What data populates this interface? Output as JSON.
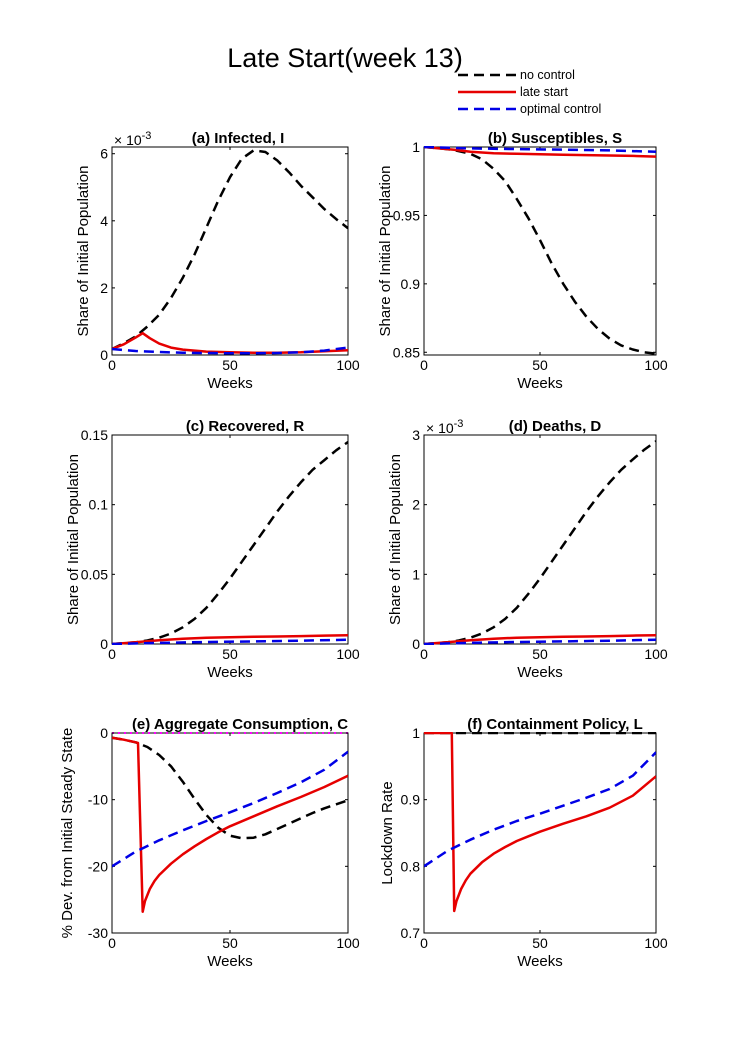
{
  "figure": {
    "title": "Late Start(week 13)",
    "legend": {
      "position": "top-right",
      "entries": [
        {
          "label": "no control",
          "color": "#000000",
          "style": "dashed"
        },
        {
          "label": "late start",
          "color": "#e60000",
          "style": "solid"
        },
        {
          "label": "optimal control",
          "color": "#0000e6",
          "style": "dashed"
        }
      ]
    }
  },
  "chart_data": [
    {
      "id": "a",
      "type": "line",
      "title": "(a) Infected, I",
      "xlabel": "Weeks",
      "ylabel": "Share of Initial Population",
      "xlim": [
        0,
        100
      ],
      "ylim": [
        0,
        6.2
      ],
      "xticks": [
        0,
        50,
        100
      ],
      "yticks": [
        0,
        2,
        4,
        6
      ],
      "exponent": "-3",
      "series": [
        {
          "name": "no control",
          "color": "#000000",
          "dash": true,
          "x": [
            0,
            5,
            10,
            15,
            20,
            25,
            30,
            35,
            40,
            45,
            50,
            55,
            60,
            65,
            70,
            75,
            80,
            85,
            90,
            95,
            100
          ],
          "y": [
            0.18,
            0.35,
            0.55,
            0.85,
            1.2,
            1.7,
            2.3,
            3.0,
            3.8,
            4.6,
            5.3,
            5.85,
            6.1,
            6.05,
            5.8,
            5.45,
            5.05,
            4.7,
            4.35,
            4.05,
            3.78
          ]
        },
        {
          "name": "late start",
          "color": "#e60000",
          "dash": false,
          "x": [
            0,
            5,
            10,
            13,
            16,
            20,
            25,
            30,
            40,
            50,
            60,
            70,
            80,
            90,
            100
          ],
          "y": [
            0.18,
            0.32,
            0.52,
            0.65,
            0.5,
            0.34,
            0.22,
            0.16,
            0.1,
            0.08,
            0.07,
            0.07,
            0.08,
            0.11,
            0.14
          ]
        },
        {
          "name": "optimal control",
          "color": "#0000e6",
          "dash": true,
          "x": [
            0,
            10,
            20,
            30,
            40,
            50,
            60,
            70,
            80,
            90,
            100
          ],
          "y": [
            0.18,
            0.12,
            0.09,
            0.07,
            0.06,
            0.05,
            0.05,
            0.06,
            0.08,
            0.13,
            0.22
          ]
        }
      ]
    },
    {
      "id": "b",
      "type": "line",
      "title": "(b) Susceptibles, S",
      "xlabel": "Weeks",
      "ylabel": "Share of Initial Population",
      "xlim": [
        0,
        100
      ],
      "ylim": [
        0.848,
        1.0
      ],
      "xticks": [
        0,
        50,
        100
      ],
      "yticks": [
        0.85,
        0.9,
        0.95,
        1
      ],
      "exponent": "",
      "series": [
        {
          "name": "no control",
          "color": "#000000",
          "dash": true,
          "x": [
            0,
            10,
            15,
            20,
            25,
            30,
            35,
            40,
            45,
            50,
            55,
            60,
            65,
            70,
            75,
            80,
            85,
            90,
            95,
            100
          ],
          "y": [
            1.0,
            0.9985,
            0.997,
            0.995,
            0.991,
            0.984,
            0.975,
            0.962,
            0.948,
            0.932,
            0.915,
            0.9,
            0.887,
            0.876,
            0.867,
            0.86,
            0.855,
            0.852,
            0.85,
            0.849
          ]
        },
        {
          "name": "late start",
          "color": "#e60000",
          "dash": false,
          "x": [
            0,
            10,
            13,
            20,
            30,
            40,
            50,
            60,
            70,
            80,
            90,
            100
          ],
          "y": [
            1.0,
            0.9985,
            0.998,
            0.9965,
            0.9955,
            0.995,
            0.9947,
            0.9944,
            0.9941,
            0.9938,
            0.9935,
            0.993
          ]
        },
        {
          "name": "optimal control",
          "color": "#0000e6",
          "dash": true,
          "x": [
            0,
            20,
            40,
            60,
            80,
            100
          ],
          "y": [
            1.0,
            0.999,
            0.9985,
            0.998,
            0.9975,
            0.9965
          ]
        }
      ]
    },
    {
      "id": "c",
      "type": "line",
      "title": "(c) Recovered, R",
      "xlabel": "Weeks",
      "ylabel": "Share of Initial Population",
      "xlim": [
        0,
        100
      ],
      "ylim": [
        0,
        0.15
      ],
      "xticks": [
        0,
        50,
        100
      ],
      "yticks": [
        0,
        0.05,
        0.1,
        0.15
      ],
      "exponent": "",
      "series": [
        {
          "name": "no control",
          "color": "#000000",
          "dash": true,
          "x": [
            0,
            10,
            15,
            20,
            25,
            30,
            35,
            40,
            45,
            50,
            55,
            60,
            65,
            70,
            75,
            80,
            85,
            90,
            95,
            100
          ],
          "y": [
            0,
            0.0012,
            0.0025,
            0.0045,
            0.0075,
            0.012,
            0.018,
            0.026,
            0.036,
            0.047,
            0.059,
            0.071,
            0.083,
            0.095,
            0.106,
            0.116,
            0.125,
            0.132,
            0.139,
            0.145
          ]
        },
        {
          "name": "late start",
          "color": "#e60000",
          "dash": false,
          "x": [
            0,
            10,
            13,
            20,
            30,
            40,
            50,
            60,
            70,
            80,
            90,
            100
          ],
          "y": [
            0,
            0.0012,
            0.0017,
            0.0027,
            0.0038,
            0.0045,
            0.0049,
            0.0052,
            0.0054,
            0.0057,
            0.006,
            0.0063
          ]
        },
        {
          "name": "optimal control",
          "color": "#0000e6",
          "dash": true,
          "x": [
            0,
            20,
            40,
            60,
            80,
            100
          ],
          "y": [
            0,
            0.0008,
            0.0014,
            0.0019,
            0.0024,
            0.0031
          ]
        }
      ]
    },
    {
      "id": "d",
      "type": "line",
      "title": "(d) Deaths, D",
      "xlabel": "Weeks",
      "ylabel": "Share of Initial Population",
      "xlim": [
        0,
        100
      ],
      "ylim": [
        0,
        3
      ],
      "xticks": [
        0,
        50,
        100
      ],
      "yticks": [
        0,
        1,
        2,
        3
      ],
      "exponent": "-3",
      "series": [
        {
          "name": "no control",
          "color": "#000000",
          "dash": true,
          "x": [
            0,
            10,
            15,
            20,
            25,
            30,
            35,
            40,
            45,
            50,
            55,
            60,
            65,
            70,
            75,
            80,
            85,
            90,
            95,
            100
          ],
          "y": [
            0,
            0.024,
            0.05,
            0.09,
            0.15,
            0.24,
            0.36,
            0.52,
            0.72,
            0.94,
            1.18,
            1.42,
            1.66,
            1.9,
            2.12,
            2.32,
            2.5,
            2.65,
            2.79,
            2.91
          ]
        },
        {
          "name": "late start",
          "color": "#e60000",
          "dash": false,
          "x": [
            0,
            10,
            13,
            20,
            30,
            40,
            50,
            60,
            70,
            80,
            90,
            100
          ],
          "y": [
            0,
            0.024,
            0.034,
            0.054,
            0.076,
            0.09,
            0.098,
            0.104,
            0.108,
            0.114,
            0.12,
            0.126
          ]
        },
        {
          "name": "optimal control",
          "color": "#0000e6",
          "dash": true,
          "x": [
            0,
            20,
            40,
            60,
            80,
            100
          ],
          "y": [
            0,
            0.016,
            0.028,
            0.038,
            0.048,
            0.062
          ]
        }
      ]
    },
    {
      "id": "e",
      "type": "line",
      "title": "(e) Aggregate Consumption, C",
      "xlabel": "Weeks",
      "ylabel": "% Dev. from Initial Steady State",
      "xlim": [
        0,
        100
      ],
      "ylim": [
        -30,
        0
      ],
      "xticks": [
        0,
        50,
        100
      ],
      "yticks": [
        -30,
        -20,
        -10,
        0
      ],
      "exponent": "",
      "reference_line": {
        "y": 0,
        "color": "#ff00ff",
        "style": "dotted"
      },
      "series": [
        {
          "name": "no control",
          "color": "#000000",
          "dash": true,
          "x": [
            0,
            5,
            10,
            15,
            20,
            25,
            30,
            35,
            40,
            45,
            50,
            55,
            60,
            65,
            70,
            75,
            80,
            85,
            90,
            95,
            100
          ],
          "y": [
            -0.7,
            -1.0,
            -1.4,
            -2.1,
            -3.3,
            -5.0,
            -7.3,
            -9.9,
            -12.3,
            -14.2,
            -15.4,
            -15.8,
            -15.7,
            -15.2,
            -14.4,
            -13.6,
            -12.8,
            -12.0,
            -11.3,
            -10.7,
            -10.1
          ]
        },
        {
          "name": "late start",
          "color": "#e60000",
          "dash": false,
          "x": [
            0,
            5,
            10,
            11,
            12,
            13,
            14,
            16,
            18,
            20,
            25,
            30,
            35,
            40,
            45,
            50,
            60,
            70,
            80,
            90,
            100
          ],
          "y": [
            -0.7,
            -1.0,
            -1.4,
            -1.5,
            -14,
            -26.8,
            -25.2,
            -23.4,
            -22.2,
            -21.3,
            -19.6,
            -18.2,
            -17.0,
            -15.9,
            -14.9,
            -14.0,
            -12.5,
            -11.0,
            -9.6,
            -8.1,
            -6.4
          ]
        },
        {
          "name": "optimal control",
          "color": "#0000e6",
          "dash": true,
          "x": [
            0,
            10,
            20,
            30,
            40,
            50,
            60,
            70,
            80,
            90,
            100
          ],
          "y": [
            -20,
            -17.8,
            -16.1,
            -14.6,
            -13.2,
            -11.9,
            -10.5,
            -9.0,
            -7.4,
            -5.5,
            -2.8
          ]
        }
      ]
    },
    {
      "id": "f",
      "type": "line",
      "title": "(f) Containment Policy, L",
      "xlabel": "Weeks",
      "ylabel": "Lockdown Rate",
      "xlim": [
        0,
        100
      ],
      "ylim": [
        0.7,
        1.0
      ],
      "xticks": [
        0,
        50,
        100
      ],
      "yticks": [
        0.7,
        0.8,
        0.9,
        1
      ],
      "exponent": "",
      "series": [
        {
          "name": "no control",
          "color": "#000000",
          "dash": true,
          "x": [
            0,
            100
          ],
          "y": [
            1.0,
            1.0
          ]
        },
        {
          "name": "late start",
          "color": "#e60000",
          "dash": false,
          "x": [
            0,
            12,
            13,
            14,
            16,
            18,
            20,
            25,
            30,
            35,
            40,
            45,
            50,
            60,
            70,
            80,
            90,
            100
          ],
          "y": [
            1.0,
            1.0,
            0.733,
            0.748,
            0.766,
            0.779,
            0.789,
            0.806,
            0.819,
            0.829,
            0.838,
            0.845,
            0.852,
            0.864,
            0.875,
            0.888,
            0.906,
            0.935
          ]
        },
        {
          "name": "optimal control",
          "color": "#0000e6",
          "dash": true,
          "x": [
            0,
            10,
            20,
            30,
            40,
            50,
            60,
            70,
            80,
            90,
            100
          ],
          "y": [
            0.8,
            0.823,
            0.84,
            0.855,
            0.868,
            0.879,
            0.891,
            0.903,
            0.916,
            0.936,
            0.971
          ]
        }
      ]
    }
  ]
}
